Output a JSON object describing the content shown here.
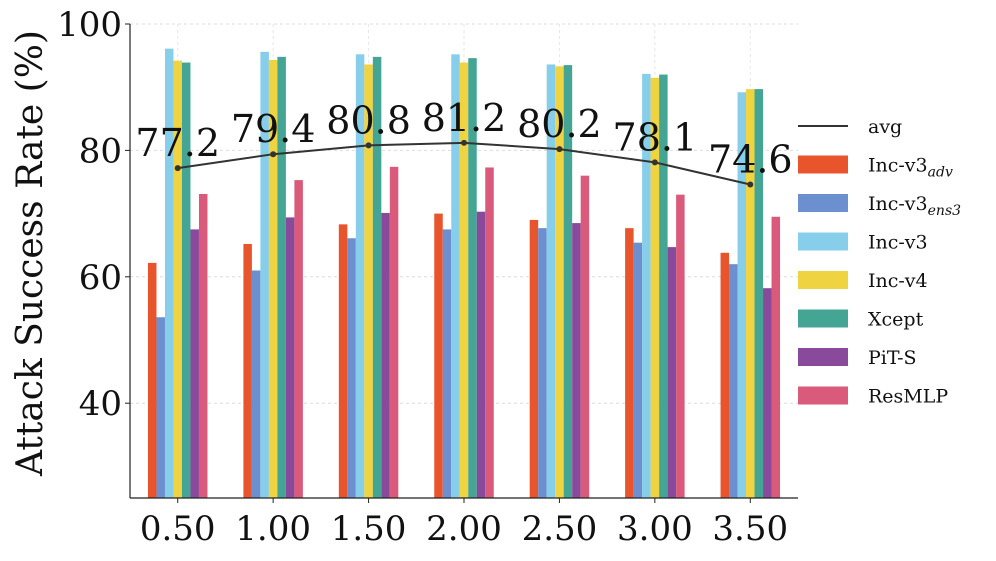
{
  "chart_data": {
    "type": "bar",
    "title": "",
    "xlabel": "",
    "ylabel": "Attack Success Rate (%)",
    "ylim": [
      25,
      100
    ],
    "yticks": [
      40,
      60,
      80,
      100
    ],
    "categories": [
      "0.50",
      "1.00",
      "1.50",
      "2.00",
      "2.50",
      "3.00",
      "3.50"
    ],
    "grid": true,
    "legend_position": "right",
    "series": [
      {
        "name": "Inc-v3",
        "name_sub": "adv",
        "color": "#e8552c",
        "values": [
          62.2,
          65.2,
          68.3,
          70.0,
          69.0,
          67.7,
          63.8
        ]
      },
      {
        "name": "Inc-v3",
        "name_sub": "ens3",
        "color": "#6b8fcf",
        "values": [
          53.6,
          61.0,
          66.1,
          67.5,
          67.7,
          65.4,
          62.0
        ]
      },
      {
        "name": "Inc-v3",
        "name_sub": "",
        "color": "#87ceeb",
        "values": [
          96.1,
          95.6,
          95.2,
          95.2,
          93.6,
          92.1,
          89.2
        ]
      },
      {
        "name": "Inc-v4",
        "name_sub": "",
        "color": "#f0d340",
        "values": [
          94.2,
          94.3,
          93.6,
          93.9,
          93.3,
          91.5,
          89.7
        ]
      },
      {
        "name": "Xcept",
        "name_sub": "",
        "color": "#45a594",
        "values": [
          93.9,
          94.8,
          94.8,
          94.6,
          93.5,
          92.0,
          89.7
        ]
      },
      {
        "name": "PiT-S",
        "name_sub": "",
        "color": "#8a4a9c",
        "values": [
          67.5,
          69.4,
          70.1,
          70.3,
          68.5,
          64.7,
          58.2
        ]
      },
      {
        "name": "ResMLP",
        "name_sub": "",
        "color": "#d95a7a",
        "values": [
          73.1,
          75.3,
          77.4,
          77.3,
          76.0,
          73.0,
          69.5
        ]
      }
    ],
    "line": {
      "name": "avg",
      "color": "#333333",
      "values": [
        77.2,
        79.4,
        80.8,
        81.2,
        80.2,
        78.1,
        74.6
      ],
      "labels": [
        "77.2",
        "79.4",
        "80.8",
        "81.2",
        "80.2",
        "78.1",
        "74.6"
      ]
    }
  }
}
